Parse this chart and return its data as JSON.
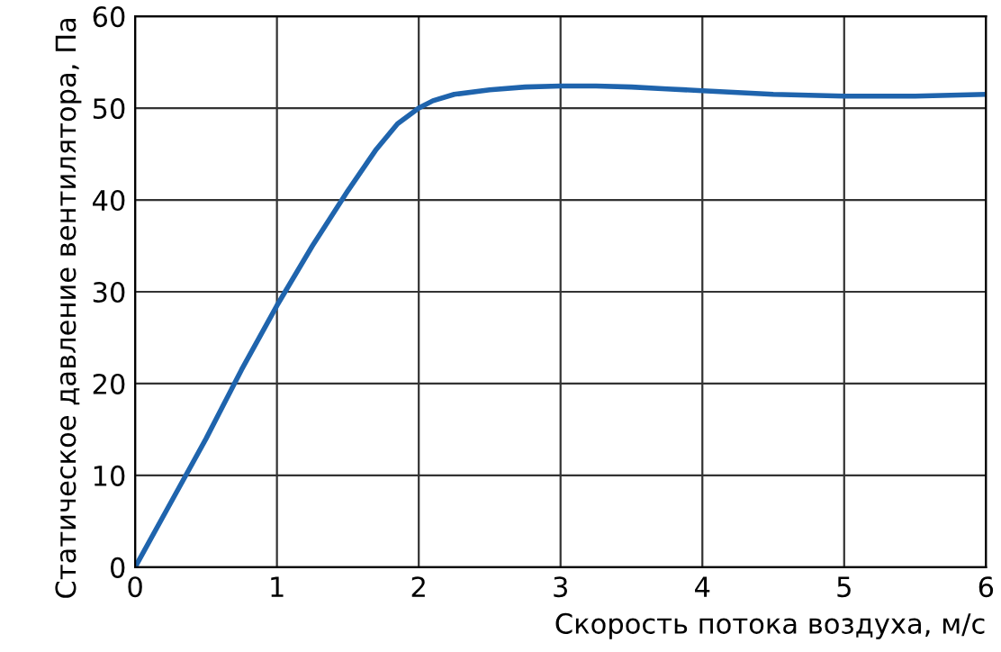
{
  "chart_data": {
    "type": "line",
    "xlabel": "Скорость потока воздуха, м/с",
    "ylabel": "Статическое давление вентилятора, Па",
    "xlim": [
      0,
      6
    ],
    "ylim": [
      0,
      60
    ],
    "xticks": [
      0,
      1,
      2,
      3,
      4,
      5,
      6
    ],
    "yticks": [
      0,
      10,
      20,
      30,
      40,
      50,
      60
    ],
    "grid": true,
    "series": [
      {
        "color": "#1f64ad",
        "x": [
          0,
          0.25,
          0.5,
          0.75,
          1,
          1.25,
          1.5,
          1.7,
          1.85,
          2,
          2.1,
          2.25,
          2.5,
          2.75,
          3,
          3.25,
          3.5,
          3.75,
          4,
          4.25,
          4.5,
          4.75,
          5,
          5.25,
          5.5,
          5.75,
          6
        ],
        "values": [
          0,
          7,
          14,
          21.5,
          28.5,
          35,
          41,
          45.5,
          48.3,
          50,
          50.8,
          51.5,
          52,
          52.3,
          52.4,
          52.4,
          52.3,
          52.1,
          51.9,
          51.7,
          51.5,
          51.4,
          51.3,
          51.3,
          51.3,
          51.4,
          51.5
        ]
      }
    ]
  }
}
